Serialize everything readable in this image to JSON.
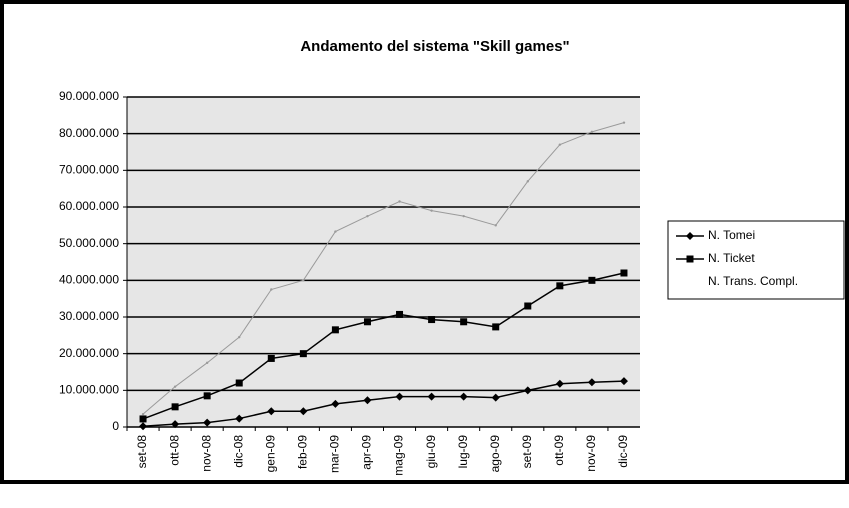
{
  "chart_data": {
    "type": "line",
    "title": "Andamento del sistema \"Skill games\"",
    "categories": [
      "set-08",
      "ott-08",
      "nov-08",
      "dic-08",
      "gen-09",
      "feb-09",
      "mar-09",
      "apr-09",
      "mag-09",
      "giu-09",
      "lug-09",
      "ago-09",
      "set-09",
      "ott-09",
      "nov-09",
      "dic-09"
    ],
    "series": [
      {
        "name": "N. Tomei",
        "color": "#000000",
        "marker": "diamond",
        "values": [
          200000,
          800000,
          1200000,
          2300000,
          4300000,
          4300000,
          6300000,
          7300000,
          8300000,
          8300000,
          8300000,
          8000000,
          10000000,
          11800000,
          12200000,
          12500000
        ]
      },
      {
        "name": "N. Ticket",
        "color": "#000000",
        "marker": "square",
        "values": [
          2200000,
          5500000,
          8500000,
          12000000,
          18700000,
          20000000,
          26500000,
          28700000,
          30700000,
          29300000,
          28700000,
          27300000,
          33000000,
          38500000,
          40000000,
          42000000
        ]
      },
      {
        "name": "N. Trans. Compl.",
        "color": "#9a9a9a",
        "marker": "none",
        "values": [
          3500000,
          11000000,
          17500000,
          24500000,
          37500000,
          40000000,
          53300000,
          57500000,
          61500000,
          59000000,
          57500000,
          55000000,
          67000000,
          77000000,
          80500000,
          83000000
        ]
      }
    ],
    "ylim": [
      0,
      90000000
    ],
    "yticks": [
      0,
      {
        "value": 10000000,
        "label": "10.000.000"
      },
      {
        "value": 20000000,
        "label": "20.000.000"
      },
      {
        "value": 30000000,
        "label": "30.000.000"
      },
      {
        "value": 40000000,
        "label": "40.000.000"
      },
      {
        "value": 50000000,
        "label": "50.000.000"
      },
      {
        "value": 60000000,
        "label": "60.000.000"
      },
      {
        "value": 70000000,
        "label": "70.000.000"
      },
      {
        "value": 80000000,
        "label": "80.000.000"
      },
      {
        "value": 90000000,
        "label": "90.000.000"
      }
    ],
    "grid": true,
    "legend": "right"
  }
}
